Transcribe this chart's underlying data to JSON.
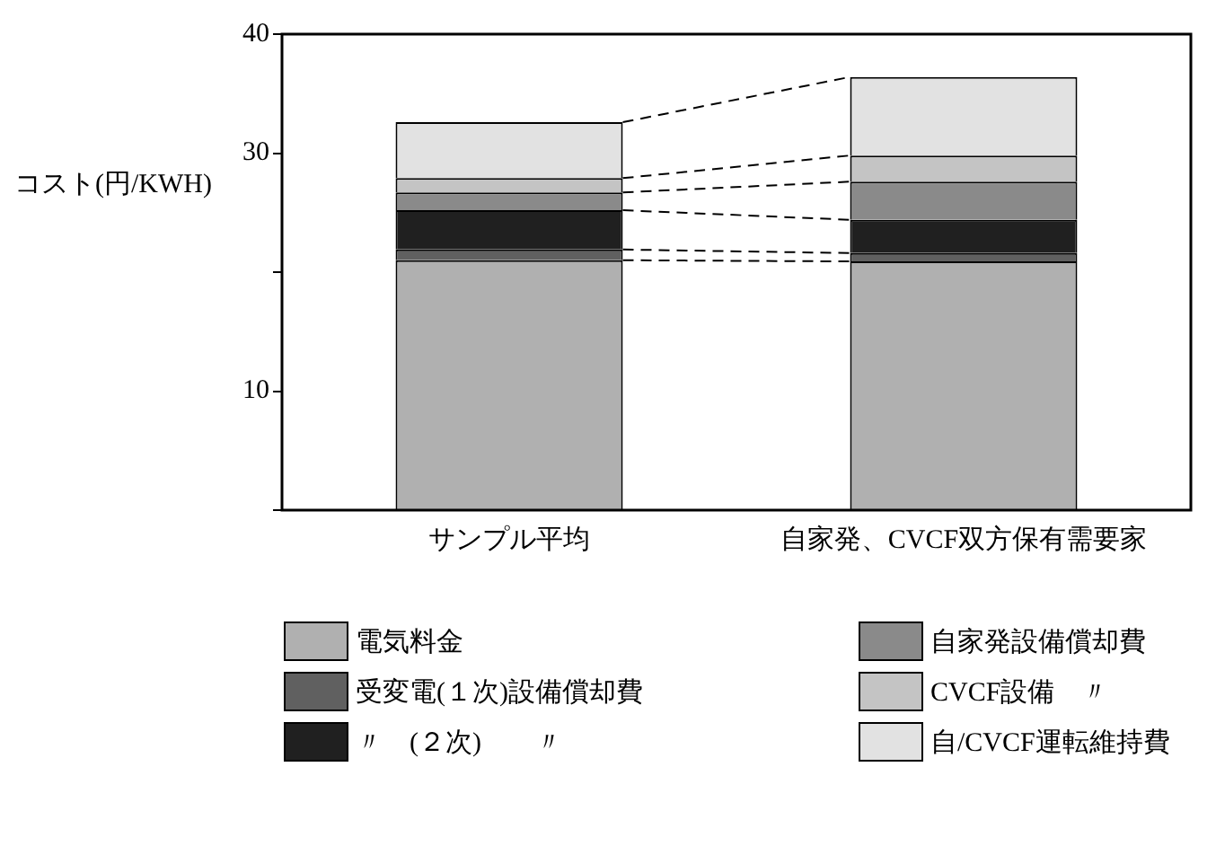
{
  "chart_data": {
    "type": "bar",
    "stacked": true,
    "ylabel": "コスト(円/KWH)",
    "categories": [
      "サンプル平均",
      "自家発、CVCF双方保有需要家"
    ],
    "series": [
      {
        "name": "電気料金",
        "color": "#b0b0b0",
        "values": [
          21.0,
          20.9
        ]
      },
      {
        "name": "受変電(１次)設備償却費",
        "color": "#606060",
        "values": [
          0.9,
          0.7
        ]
      },
      {
        "name": "〃　(２次)　　〃",
        "color": "#202020",
        "values": [
          3.3,
          2.8
        ]
      },
      {
        "name": "自家発設備償却費",
        "color": "#8a8a8a",
        "values": [
          1.5,
          3.2
        ]
      },
      {
        "name": "CVCF設備　〃",
        "color": "#c4c4c4",
        "values": [
          1.2,
          2.2
        ]
      },
      {
        "name": "自/CVCF運転維持費",
        "color": "#e2e2e2",
        "values": [
          4.7,
          6.6
        ]
      }
    ],
    "ylim": [
      0,
      40
    ],
    "yticks": [
      {
        "value": 0,
        "label": null
      },
      10,
      {
        "value": 20,
        "label": null
      },
      30,
      40
    ],
    "grid": false,
    "legend": "bottom"
  }
}
